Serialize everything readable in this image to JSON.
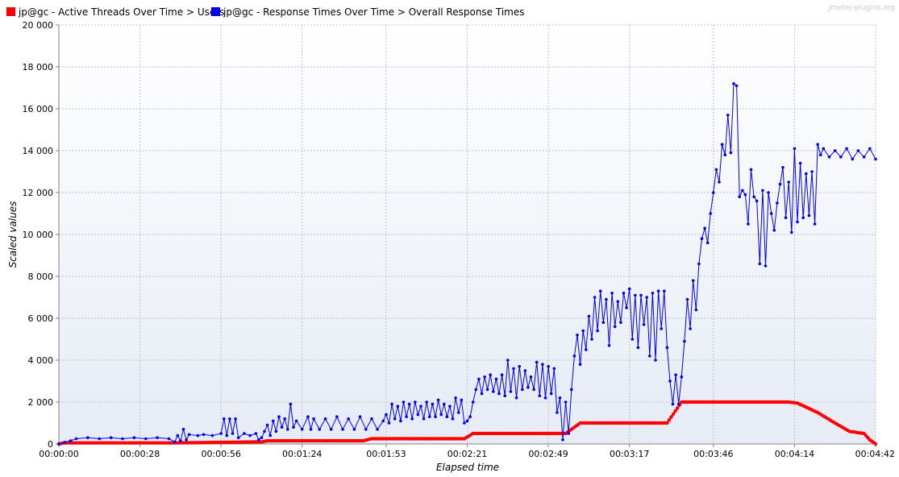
{
  "watermark": "jmeter-plugins.org",
  "colors": {
    "users": "#ff0000",
    "response": "#0000ff",
    "grid": "#c0c0c0",
    "plot_bg_top": "#ffffff",
    "plot_bg_bottom": "#e6ebf5"
  },
  "chart_data": {
    "type": "line",
    "title": "",
    "xlabel": "Elapsed time",
    "ylabel": "Scaled values",
    "xlim": [
      0,
      282
    ],
    "ylim": [
      0,
      20000
    ],
    "grid": true,
    "legend_position": "top-left",
    "x_ticks": [
      {
        "label": "00:00:00",
        "t": 0
      },
      {
        "label": "00:00:28",
        "t": 28
      },
      {
        "label": "00:00:56",
        "t": 56
      },
      {
        "label": "00:01:24",
        "t": 84
      },
      {
        "label": "00:01:53",
        "t": 113
      },
      {
        "label": "00:02:21",
        "t": 141
      },
      {
        "label": "00:02:49",
        "t": 169
      },
      {
        "label": "00:03:17",
        "t": 197
      },
      {
        "label": "00:03:46",
        "t": 226
      },
      {
        "label": "00:04:14",
        "t": 254
      },
      {
        "label": "00:04:42",
        "t": 282
      }
    ],
    "y_ticks": [
      {
        "label": "0",
        "v": 0
      },
      {
        "label": "2 000",
        "v": 2000
      },
      {
        "label": "4 000",
        "v": 4000
      },
      {
        "label": "6 000",
        "v": 6000
      },
      {
        "label": "8 000",
        "v": 8000
      },
      {
        "label": "10 000",
        "v": 10000
      },
      {
        "label": "12 000",
        "v": 12000
      },
      {
        "label": "14 000",
        "v": 14000
      },
      {
        "label": "16 000",
        "v": 16000
      },
      {
        "label": "18 000",
        "v": 18000
      },
      {
        "label": "20 000",
        "v": 20000
      }
    ],
    "series": [
      {
        "name": "jp@gc - Active Threads Over Time > Users",
        "color": "#ff0000",
        "points": [
          [
            0,
            0
          ],
          [
            2,
            50
          ],
          [
            40,
            50
          ],
          [
            70,
            100
          ],
          [
            72,
            150
          ],
          [
            105,
            150
          ],
          [
            108,
            250
          ],
          [
            140,
            250
          ],
          [
            143,
            500
          ],
          [
            175,
            500
          ],
          [
            180,
            1000
          ],
          [
            210,
            1000
          ],
          [
            215,
            2000
          ],
          [
            252,
            2000
          ],
          [
            255,
            1950
          ],
          [
            262,
            1500
          ],
          [
            268,
            1000
          ],
          [
            273,
            600
          ],
          [
            278,
            500
          ],
          [
            280,
            200
          ],
          [
            282,
            0
          ]
        ]
      },
      {
        "name": "jp@gc - Response Times Over Time > Overall Response Times",
        "color": "#0000ff",
        "points": [
          [
            0,
            0
          ],
          [
            2,
            80
          ],
          [
            4,
            150
          ],
          [
            6,
            250
          ],
          [
            10,
            300
          ],
          [
            14,
            250
          ],
          [
            18,
            300
          ],
          [
            22,
            250
          ],
          [
            26,
            300
          ],
          [
            30,
            250
          ],
          [
            34,
            300
          ],
          [
            38,
            250
          ],
          [
            40,
            100
          ],
          [
            41,
            400
          ],
          [
            42,
            150
          ],
          [
            43,
            700
          ],
          [
            44,
            200
          ],
          [
            45,
            450
          ],
          [
            48,
            400
          ],
          [
            50,
            450
          ],
          [
            53,
            400
          ],
          [
            56,
            500
          ],
          [
            57,
            1200
          ],
          [
            58,
            400
          ],
          [
            59,
            1200
          ],
          [
            60,
            500
          ],
          [
            61,
            1200
          ],
          [
            62,
            300
          ],
          [
            64,
            500
          ],
          [
            66,
            400
          ],
          [
            68,
            500
          ],
          [
            69,
            200
          ],
          [
            70,
            300
          ],
          [
            71,
            600
          ],
          [
            72,
            900
          ],
          [
            73,
            400
          ],
          [
            74,
            1100
          ],
          [
            75,
            600
          ],
          [
            76,
            1300
          ],
          [
            77,
            800
          ],
          [
            78,
            1200
          ],
          [
            79,
            700
          ],
          [
            80,
            1900
          ],
          [
            81,
            800
          ],
          [
            82,
            1100
          ],
          [
            84,
            700
          ],
          [
            86,
            1300
          ],
          [
            87,
            700
          ],
          [
            88,
            1200
          ],
          [
            90,
            700
          ],
          [
            92,
            1200
          ],
          [
            94,
            700
          ],
          [
            96,
            1300
          ],
          [
            98,
            700
          ],
          [
            100,
            1200
          ],
          [
            102,
            700
          ],
          [
            104,
            1300
          ],
          [
            106,
            700
          ],
          [
            108,
            1200
          ],
          [
            110,
            700
          ],
          [
            112,
            1100
          ],
          [
            113,
            1400
          ],
          [
            114,
            1000
          ],
          [
            115,
            1900
          ],
          [
            116,
            1200
          ],
          [
            117,
            1800
          ],
          [
            118,
            1100
          ],
          [
            119,
            2000
          ],
          [
            120,
            1300
          ],
          [
            121,
            1900
          ],
          [
            122,
            1200
          ],
          [
            123,
            2000
          ],
          [
            124,
            1400
          ],
          [
            125,
            1800
          ],
          [
            126,
            1200
          ],
          [
            127,
            2000
          ],
          [
            128,
            1300
          ],
          [
            129,
            1900
          ],
          [
            130,
            1300
          ],
          [
            131,
            2100
          ],
          [
            132,
            1400
          ],
          [
            133,
            1900
          ],
          [
            134,
            1300
          ],
          [
            135,
            1800
          ],
          [
            136,
            1200
          ],
          [
            137,
            2200
          ],
          [
            138,
            1500
          ],
          [
            139,
            2100
          ],
          [
            140,
            1000
          ],
          [
            141,
            1100
          ],
          [
            142,
            1300
          ],
          [
            143,
            2000
          ],
          [
            144,
            2600
          ],
          [
            145,
            3100
          ],
          [
            146,
            2400
          ],
          [
            147,
            3200
          ],
          [
            148,
            2600
          ],
          [
            149,
            3300
          ],
          [
            150,
            2500
          ],
          [
            151,
            3100
          ],
          [
            152,
            2400
          ],
          [
            153,
            3300
          ],
          [
            154,
            2300
          ],
          [
            155,
            4000
          ],
          [
            156,
            2500
          ],
          [
            157,
            3600
          ],
          [
            158,
            2200
          ],
          [
            159,
            3700
          ],
          [
            160,
            2600
          ],
          [
            161,
            3500
          ],
          [
            162,
            2700
          ],
          [
            163,
            3200
          ],
          [
            164,
            2600
          ],
          [
            165,
            3900
          ],
          [
            166,
            2300
          ],
          [
            167,
            3800
          ],
          [
            168,
            2200
          ],
          [
            169,
            3700
          ],
          [
            170,
            2400
          ],
          [
            171,
            3600
          ],
          [
            172,
            1500
          ],
          [
            173,
            2200
          ],
          [
            174,
            200
          ],
          [
            175,
            2000
          ],
          [
            176,
            500
          ],
          [
            177,
            2600
          ],
          [
            178,
            4200
          ],
          [
            179,
            5200
          ],
          [
            180,
            3800
          ],
          [
            181,
            5400
          ],
          [
            182,
            4500
          ],
          [
            183,
            6100
          ],
          [
            184,
            5000
          ],
          [
            185,
            7000
          ],
          [
            186,
            5400
          ],
          [
            187,
            7300
          ],
          [
            188,
            5800
          ],
          [
            189,
            6900
          ],
          [
            190,
            4700
          ],
          [
            191,
            7200
          ],
          [
            192,
            5600
          ],
          [
            193,
            6800
          ],
          [
            194,
            5800
          ],
          [
            195,
            7200
          ],
          [
            196,
            6500
          ],
          [
            197,
            7400
          ],
          [
            198,
            5000
          ],
          [
            199,
            7100
          ],
          [
            200,
            4600
          ],
          [
            201,
            7100
          ],
          [
            202,
            5700
          ],
          [
            203,
            7000
          ],
          [
            204,
            4200
          ],
          [
            205,
            7200
          ],
          [
            206,
            4000
          ],
          [
            207,
            7300
          ],
          [
            208,
            5500
          ],
          [
            209,
            7300
          ],
          [
            210,
            4600
          ],
          [
            211,
            3000
          ],
          [
            212,
            1900
          ],
          [
            213,
            3300
          ],
          [
            214,
            1900
          ],
          [
            215,
            3200
          ],
          [
            216,
            4900
          ],
          [
            217,
            6900
          ],
          [
            218,
            5500
          ],
          [
            219,
            7800
          ],
          [
            220,
            6400
          ],
          [
            221,
            8600
          ],
          [
            222,
            9800
          ],
          [
            223,
            10300
          ],
          [
            224,
            9600
          ],
          [
            225,
            11000
          ],
          [
            226,
            12000
          ],
          [
            227,
            13100
          ],
          [
            228,
            12500
          ],
          [
            229,
            14300
          ],
          [
            230,
            13800
          ],
          [
            231,
            15700
          ],
          [
            232,
            13900
          ],
          [
            233,
            17200
          ],
          [
            234,
            17100
          ],
          [
            235,
            11800
          ],
          [
            236,
            12100
          ],
          [
            237,
            11900
          ],
          [
            238,
            10500
          ],
          [
            239,
            13100
          ],
          [
            240,
            11800
          ],
          [
            241,
            11600
          ],
          [
            242,
            8600
          ],
          [
            243,
            12100
          ],
          [
            244,
            8500
          ],
          [
            245,
            12000
          ],
          [
            246,
            11000
          ],
          [
            247,
            10200
          ],
          [
            248,
            11500
          ],
          [
            249,
            12400
          ],
          [
            250,
            13200
          ],
          [
            251,
            10800
          ],
          [
            252,
            12500
          ],
          [
            253,
            10100
          ],
          [
            254,
            14100
          ],
          [
            255,
            10600
          ],
          [
            256,
            13400
          ],
          [
            257,
            10800
          ],
          [
            258,
            12900
          ],
          [
            259,
            10900
          ],
          [
            260,
            13000
          ],
          [
            261,
            10500
          ],
          [
            262,
            14300
          ],
          [
            263,
            13800
          ],
          [
            264,
            14100
          ],
          [
            266,
            13700
          ],
          [
            268,
            14000
          ],
          [
            270,
            13700
          ],
          [
            272,
            14100
          ],
          [
            274,
            13600
          ],
          [
            276,
            14000
          ],
          [
            278,
            13700
          ],
          [
            280,
            14100
          ],
          [
            282,
            13600
          ]
        ]
      }
    ]
  }
}
